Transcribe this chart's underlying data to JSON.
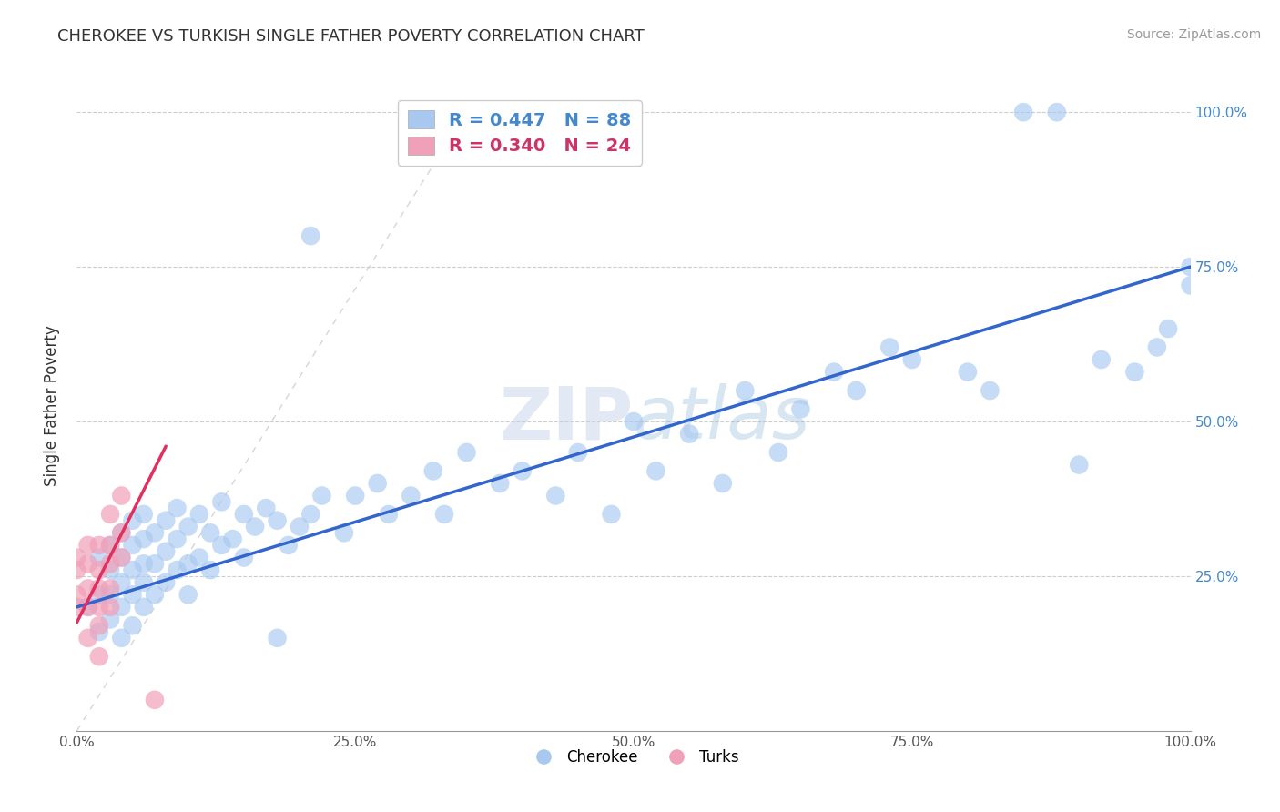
{
  "title": "CHEROKEE VS TURKISH SINGLE FATHER POVERTY CORRELATION CHART",
  "source": "Source: ZipAtlas.com",
  "xlabel": "",
  "ylabel": "Single Father Poverty",
  "watermark": "ZIPatlas",
  "legend_cherokee": "Cherokee",
  "legend_turks": "Turks",
  "cherokee_R": 0.447,
  "cherokee_N": 88,
  "turks_R": 0.34,
  "turks_N": 24,
  "cherokee_color": "#a8c8f0",
  "turks_color": "#f0a0b8",
  "cherokee_line_color": "#3366cc",
  "turks_line_color": "#e03060",
  "background_color": "#ffffff",
  "grid_color": "#c8c8c8",
  "cherokee_x": [
    0.01,
    0.02,
    0.02,
    0.02,
    0.03,
    0.03,
    0.03,
    0.03,
    0.04,
    0.04,
    0.04,
    0.04,
    0.04,
    0.05,
    0.05,
    0.05,
    0.05,
    0.05,
    0.06,
    0.06,
    0.06,
    0.06,
    0.06,
    0.07,
    0.07,
    0.07,
    0.08,
    0.08,
    0.08,
    0.09,
    0.09,
    0.09,
    0.1,
    0.1,
    0.1,
    0.11,
    0.11,
    0.12,
    0.12,
    0.13,
    0.13,
    0.14,
    0.15,
    0.15,
    0.16,
    0.17,
    0.18,
    0.19,
    0.2,
    0.21,
    0.22,
    0.24,
    0.25,
    0.27,
    0.28,
    0.3,
    0.32,
    0.33,
    0.35,
    0.38,
    0.4,
    0.43,
    0.45,
    0.48,
    0.5,
    0.52,
    0.55,
    0.58,
    0.6,
    0.63,
    0.65,
    0.68,
    0.7,
    0.73,
    0.75,
    0.8,
    0.82,
    0.85,
    0.88,
    0.9,
    0.92,
    0.95,
    0.97,
    0.98,
    1.0,
    1.0,
    0.21,
    0.18
  ],
  "cherokee_y": [
    0.2,
    0.16,
    0.22,
    0.28,
    0.18,
    0.22,
    0.26,
    0.3,
    0.15,
    0.2,
    0.24,
    0.28,
    0.32,
    0.17,
    0.22,
    0.26,
    0.3,
    0.34,
    0.2,
    0.24,
    0.27,
    0.31,
    0.35,
    0.22,
    0.27,
    0.32,
    0.24,
    0.29,
    0.34,
    0.26,
    0.31,
    0.36,
    0.22,
    0.27,
    0.33,
    0.28,
    0.35,
    0.26,
    0.32,
    0.3,
    0.37,
    0.31,
    0.28,
    0.35,
    0.33,
    0.36,
    0.34,
    0.3,
    0.33,
    0.35,
    0.38,
    0.32,
    0.38,
    0.4,
    0.35,
    0.38,
    0.42,
    0.35,
    0.45,
    0.4,
    0.42,
    0.38,
    0.45,
    0.35,
    0.5,
    0.42,
    0.48,
    0.4,
    0.55,
    0.45,
    0.52,
    0.58,
    0.55,
    0.62,
    0.6,
    0.58,
    0.55,
    1.0,
    1.0,
    0.43,
    0.6,
    0.58,
    0.62,
    0.65,
    0.72,
    0.75,
    0.8,
    0.15
  ],
  "turks_x": [
    0.0,
    0.0,
    0.0,
    0.0,
    0.01,
    0.01,
    0.01,
    0.01,
    0.01,
    0.02,
    0.02,
    0.02,
    0.02,
    0.02,
    0.02,
    0.03,
    0.03,
    0.03,
    0.03,
    0.03,
    0.04,
    0.04,
    0.04,
    0.07
  ],
  "turks_y": [
    0.2,
    0.22,
    0.26,
    0.28,
    0.15,
    0.2,
    0.23,
    0.27,
    0.3,
    0.12,
    0.17,
    0.2,
    0.23,
    0.26,
    0.3,
    0.2,
    0.23,
    0.27,
    0.3,
    0.35,
    0.28,
    0.32,
    0.38,
    0.05
  ],
  "cherokee_line_x": [
    0.0,
    1.0
  ],
  "cherokee_line_y": [
    0.2,
    0.75
  ],
  "turks_line_x": [
    0.0,
    0.08
  ],
  "turks_line_y": [
    0.175,
    0.46
  ],
  "diagonal_line_x": [
    0.0,
    0.35
  ],
  "diagonal_line_y": [
    0.0,
    1.0
  ],
  "xlim": [
    0.0,
    1.0
  ],
  "ylim": [
    0.0,
    1.05
  ],
  "xticks": [
    0.0,
    0.25,
    0.5,
    0.75,
    1.0
  ],
  "yticks": [
    0.25,
    0.5,
    0.75,
    1.0
  ],
  "xticklabels": [
    "0.0%",
    "25.0%",
    "50.0%",
    "75.0%",
    "100.0%"
  ],
  "left_yticklabels": [
    "",
    "",
    "",
    ""
  ],
  "right_yticklabels": [
    "25.0%",
    "50.0%",
    "75.0%",
    "100.0%"
  ]
}
